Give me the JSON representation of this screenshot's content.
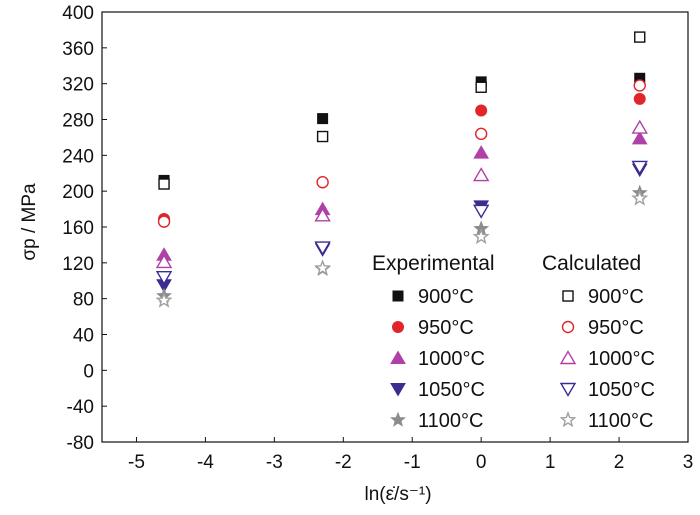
{
  "chart_data": {
    "type": "scatter",
    "xlabel": "ln(ε̇/s⁻¹)",
    "ylabel": "σp / MPa",
    "xlim": [
      -5.5,
      3
    ],
    "ylim": [
      -80,
      400
    ],
    "xticks": [
      "-5",
      "-4",
      "-3",
      "-2",
      "-1",
      "0",
      "1",
      "2",
      "3"
    ],
    "xtick_values": [
      -5,
      -4,
      -3,
      -2,
      -1,
      0,
      1,
      2,
      3
    ],
    "yticks": [
      "-80",
      "-40",
      "0",
      "40",
      "80",
      "120",
      "160",
      "200",
      "240",
      "280",
      "320",
      "360",
      "400"
    ],
    "ytick_values": [
      -80,
      -40,
      0,
      40,
      80,
      120,
      160,
      200,
      240,
      280,
      320,
      360,
      400
    ],
    "grid": false,
    "legend_placement": "bottom-right",
    "legend_group_titles": [
      "Experimental",
      "Calculated"
    ],
    "x": [
      -4.6,
      -2.3,
      0,
      2.3
    ],
    "series": [
      {
        "name": "900°C",
        "group": "Experimental",
        "marker": "square-filled",
        "color": "#111111",
        "values": [
          212,
          281,
          322,
          326
        ]
      },
      {
        "name": "950°C",
        "group": "Experimental",
        "marker": "circle-filled",
        "color": "#e0262b",
        "values": [
          169,
          210,
          290,
          303
        ]
      },
      {
        "name": "1000°C",
        "group": "Experimental",
        "marker": "triangle-up-filled",
        "color": "#b040a8",
        "values": [
          129,
          180,
          243,
          259
        ]
      },
      {
        "name": "1050°C",
        "group": "Experimental",
        "marker": "triangle-down-filled",
        "color": "#3a2c90",
        "values": [
          95,
          135,
          183,
          224
        ]
      },
      {
        "name": "1100°C",
        "group": "Experimental",
        "marker": "star-filled",
        "color": "#8c8c8c",
        "values": [
          83,
          113,
          158,
          198
        ]
      },
      {
        "name": "900°C",
        "group": "Calculated",
        "marker": "square-open",
        "color": "#111111",
        "values": [
          208,
          261,
          316,
          372
        ]
      },
      {
        "name": "950°C",
        "group": "Calculated",
        "marker": "circle-open",
        "color": "#e0262b",
        "values": [
          166,
          210,
          264,
          318
        ]
      },
      {
        "name": "1000°C",
        "group": "Calculated",
        "marker": "triangle-up-open",
        "color": "#b040a8",
        "values": [
          121,
          173,
          218,
          271
        ]
      },
      {
        "name": "1050°C",
        "group": "Calculated",
        "marker": "triangle-down-open",
        "color": "#3a2c90",
        "values": [
          104,
          137,
          178,
          227
        ]
      },
      {
        "name": "1100°C",
        "group": "Calculated",
        "marker": "star-open",
        "color": "#a0a0a0",
        "values": [
          78,
          114,
          149,
          192
        ]
      }
    ]
  }
}
